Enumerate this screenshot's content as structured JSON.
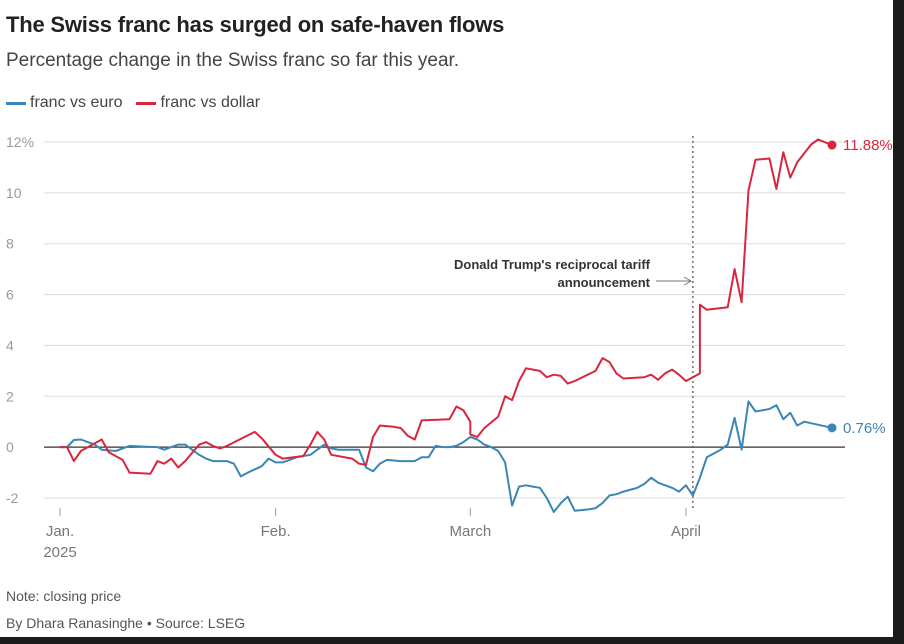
{
  "header": {
    "title": "The Swiss franc has surged on safe-haven flows",
    "subtitle": "Percentage change in the Swiss franc so far this year."
  },
  "footer": {
    "note": "Note: closing price",
    "source": "By Dhara Ranasinghe  • Source: LSEG"
  },
  "chart_data": {
    "type": "line",
    "title": "The Swiss franc has surged on safe-haven flows",
    "subtitle": "Percentage change in the Swiss franc so far this year.",
    "xlabel": "",
    "ylabel": "",
    "x_range": [
      "2025-01-01",
      "2025-04-22"
    ],
    "ylim": [
      -2.5,
      12.5
    ],
    "y_ticks": [
      {
        "value": 12,
        "label": "12%"
      },
      {
        "value": 10,
        "label": "10"
      },
      {
        "value": 8,
        "label": "8"
      },
      {
        "value": 6,
        "label": "6"
      },
      {
        "value": 4,
        "label": "4"
      },
      {
        "value": 2,
        "label": "2"
      },
      {
        "value": 0,
        "label": "0"
      },
      {
        "value": -2,
        "label": "-2"
      }
    ],
    "x_ticks": [
      {
        "date": "2025-01-01",
        "label": "Jan.",
        "sublabel": "2025"
      },
      {
        "date": "2025-02-01",
        "label": "Feb.",
        "sublabel": ""
      },
      {
        "date": "2025-03-01",
        "label": "March",
        "sublabel": ""
      },
      {
        "date": "2025-04-01",
        "label": "April",
        "sublabel": ""
      }
    ],
    "grid": true,
    "legend_position": "top-left",
    "annotation": {
      "date": "2025-04-02",
      "lines": [
        "Donald Trump's reciprocal tariff",
        "announcement"
      ]
    },
    "series": [
      {
        "name": "franc vs euro",
        "color": "#3a86b4",
        "end_label": "0.76%",
        "points": [
          [
            "2025-01-01",
            0.0
          ],
          [
            "2025-01-02",
            0.0
          ],
          [
            "2025-01-03",
            0.28
          ],
          [
            "2025-01-04",
            0.3
          ],
          [
            "2025-01-05",
            0.2
          ],
          [
            "2025-01-06",
            0.1
          ],
          [
            "2025-01-07",
            -0.1
          ],
          [
            "2025-01-09",
            -0.15
          ],
          [
            "2025-01-11",
            0.05
          ],
          [
            "2025-01-13",
            0.02
          ],
          [
            "2025-01-15",
            0.0
          ],
          [
            "2025-01-16",
            -0.1
          ],
          [
            "2025-01-17",
            0.0
          ],
          [
            "2025-01-18",
            0.1
          ],
          [
            "2025-01-19",
            0.1
          ],
          [
            "2025-01-20",
            -0.1
          ],
          [
            "2025-01-21",
            -0.3
          ],
          [
            "2025-01-22",
            -0.45
          ],
          [
            "2025-01-23",
            -0.55
          ],
          [
            "2025-01-25",
            -0.55
          ],
          [
            "2025-01-26",
            -0.65
          ],
          [
            "2025-01-27",
            -1.15
          ],
          [
            "2025-01-28",
            -1.0
          ],
          [
            "2025-01-30",
            -0.75
          ],
          [
            "2025-01-31",
            -0.45
          ],
          [
            "2025-02-01",
            -0.6
          ],
          [
            "2025-02-02",
            -0.6
          ],
          [
            "2025-02-03",
            -0.5
          ],
          [
            "2025-02-04",
            -0.4
          ],
          [
            "2025-02-06",
            -0.3
          ],
          [
            "2025-02-07",
            -0.1
          ],
          [
            "2025-02-08",
            0.1
          ],
          [
            "2025-02-09",
            -0.05
          ],
          [
            "2025-02-10",
            -0.1
          ],
          [
            "2025-02-11",
            -0.1
          ],
          [
            "2025-02-13",
            -0.1
          ],
          [
            "2025-02-14",
            -0.8
          ],
          [
            "2025-02-15",
            -0.95
          ],
          [
            "2025-02-16",
            -0.65
          ],
          [
            "2025-02-17",
            -0.5
          ],
          [
            "2025-02-19",
            -0.55
          ],
          [
            "2025-02-21",
            -0.55
          ],
          [
            "2025-02-22",
            -0.4
          ],
          [
            "2025-02-23",
            -0.4
          ],
          [
            "2025-02-24",
            0.05
          ],
          [
            "2025-02-25",
            0.0
          ],
          [
            "2025-02-26",
            0.0
          ],
          [
            "2025-02-27",
            0.05
          ],
          [
            "2025-02-28",
            0.2
          ],
          [
            "2025-03-01",
            0.4
          ],
          [
            "2025-03-02",
            0.3
          ],
          [
            "2025-03-03",
            0.1
          ],
          [
            "2025-03-04",
            0.0
          ],
          [
            "2025-03-05",
            -0.15
          ],
          [
            "2025-03-06",
            -0.6
          ],
          [
            "2025-03-07",
            -2.3
          ],
          [
            "2025-03-08",
            -1.55
          ],
          [
            "2025-03-09",
            -1.5
          ],
          [
            "2025-03-10",
            -1.55
          ],
          [
            "2025-03-11",
            -1.6
          ],
          [
            "2025-03-12",
            -2.0
          ],
          [
            "2025-03-13",
            -2.55
          ],
          [
            "2025-03-14",
            -2.2
          ],
          [
            "2025-03-15",
            -1.95
          ],
          [
            "2025-03-16",
            -2.5
          ],
          [
            "2025-03-18",
            -2.45
          ],
          [
            "2025-03-19",
            -2.4
          ],
          [
            "2025-03-20",
            -2.2
          ],
          [
            "2025-03-21",
            -1.9
          ],
          [
            "2025-03-22",
            -1.85
          ],
          [
            "2025-03-23",
            -1.75
          ],
          [
            "2025-03-25",
            -1.6
          ],
          [
            "2025-03-26",
            -1.45
          ],
          [
            "2025-03-27",
            -1.2
          ],
          [
            "2025-03-28",
            -1.4
          ],
          [
            "2025-03-30",
            -1.6
          ],
          [
            "2025-03-31",
            -1.75
          ],
          [
            "2025-04-01",
            -1.5
          ],
          [
            "2025-04-02",
            -1.9
          ],
          [
            "2025-04-03",
            -1.2
          ],
          [
            "2025-04-04",
            -0.4
          ],
          [
            "2025-04-05",
            -0.25
          ],
          [
            "2025-04-06",
            -0.1
          ],
          [
            "2025-04-07",
            0.1
          ],
          [
            "2025-04-08",
            1.15
          ],
          [
            "2025-04-09",
            -0.1
          ],
          [
            "2025-04-10",
            1.8
          ],
          [
            "2025-04-11",
            1.4
          ],
          [
            "2025-04-13",
            1.5
          ],
          [
            "2025-04-14",
            1.65
          ],
          [
            "2025-04-15",
            1.1
          ],
          [
            "2025-04-16",
            1.35
          ],
          [
            "2025-04-17",
            0.85
          ],
          [
            "2025-04-18",
            1.0
          ],
          [
            "2025-04-22",
            0.76
          ]
        ]
      },
      {
        "name": "franc vs dollar",
        "color": "#d8263e",
        "end_label": "11.88%",
        "points": [
          [
            "2025-01-01",
            0.0
          ],
          [
            "2025-01-02",
            0.0
          ],
          [
            "2025-01-03",
            -0.55
          ],
          [
            "2025-01-04",
            -0.15
          ],
          [
            "2025-01-05",
            0.0
          ],
          [
            "2025-01-07",
            0.3
          ],
          [
            "2025-01-08",
            -0.2
          ],
          [
            "2025-01-09",
            -0.35
          ],
          [
            "2025-01-10",
            -0.5
          ],
          [
            "2025-01-11",
            -1.0
          ],
          [
            "2025-01-14",
            -1.05
          ],
          [
            "2025-01-15",
            -0.55
          ],
          [
            "2025-01-16",
            -0.65
          ],
          [
            "2025-01-17",
            -0.45
          ],
          [
            "2025-01-18",
            -0.8
          ],
          [
            "2025-01-19",
            -0.55
          ],
          [
            "2025-01-21",
            0.1
          ],
          [
            "2025-01-22",
            0.2
          ],
          [
            "2025-01-23",
            0.05
          ],
          [
            "2025-01-24",
            -0.05
          ],
          [
            "2025-01-25",
            0.05
          ],
          [
            "2025-01-29",
            0.6
          ],
          [
            "2025-01-30",
            0.35
          ],
          [
            "2025-02-01",
            -0.3
          ],
          [
            "2025-02-02",
            -0.45
          ],
          [
            "2025-02-05",
            -0.35
          ],
          [
            "2025-02-06",
            0.1
          ],
          [
            "2025-02-07",
            0.6
          ],
          [
            "2025-02-08",
            0.3
          ],
          [
            "2025-02-09",
            -0.3
          ],
          [
            "2025-02-12",
            -0.45
          ],
          [
            "2025-02-13",
            -0.65
          ],
          [
            "2025-02-14",
            -0.7
          ],
          [
            "2025-02-15",
            0.4
          ],
          [
            "2025-02-16",
            0.85
          ],
          [
            "2025-02-18",
            0.8
          ],
          [
            "2025-02-19",
            0.75
          ],
          [
            "2025-02-20",
            0.45
          ],
          [
            "2025-02-21",
            0.3
          ],
          [
            "2025-02-22",
            1.05
          ],
          [
            "2025-02-26",
            1.1
          ],
          [
            "2025-02-27",
            1.6
          ],
          [
            "2025-02-28",
            1.45
          ],
          [
            "2025-02-29",
            1.0
          ],
          [
            "2025-03-01",
            0.5
          ],
          [
            "2025-03-02",
            0.4
          ],
          [
            "2025-03-03",
            0.75
          ],
          [
            "2025-03-05",
            1.2
          ],
          [
            "2025-03-06",
            2.0
          ],
          [
            "2025-03-07",
            1.85
          ],
          [
            "2025-03-08",
            2.6
          ],
          [
            "2025-03-09",
            3.1
          ],
          [
            "2025-03-11",
            3.0
          ],
          [
            "2025-03-12",
            2.75
          ],
          [
            "2025-03-13",
            2.85
          ],
          [
            "2025-03-14",
            2.8
          ],
          [
            "2025-03-15",
            2.5
          ],
          [
            "2025-03-16",
            2.6
          ],
          [
            "2025-03-19",
            3.0
          ],
          [
            "2025-03-20",
            3.5
          ],
          [
            "2025-03-21",
            3.35
          ],
          [
            "2025-03-22",
            2.9
          ],
          [
            "2025-03-23",
            2.7
          ],
          [
            "2025-03-26",
            2.75
          ],
          [
            "2025-03-27",
            2.85
          ],
          [
            "2025-03-28",
            2.65
          ],
          [
            "2025-03-29",
            2.9
          ],
          [
            "2025-03-30",
            3.05
          ],
          [
            "2025-03-31",
            2.85
          ],
          [
            "2025-04-01",
            2.6
          ],
          [
            "2025-04-02",
            2.75
          ],
          [
            "2025-04-03",
            2.9
          ],
          [
            "2025-04-03",
            5.6
          ],
          [
            "2025-04-04",
            5.4
          ],
          [
            "2025-04-07",
            5.5
          ],
          [
            "2025-04-08",
            7.0
          ],
          [
            "2025-04-09",
            5.7
          ],
          [
            "2025-04-10",
            10.1
          ],
          [
            "2025-04-11",
            11.3
          ],
          [
            "2025-04-13",
            11.35
          ],
          [
            "2025-04-14",
            10.15
          ],
          [
            "2025-04-15",
            11.6
          ],
          [
            "2025-04-16",
            10.6
          ],
          [
            "2025-04-17",
            11.2
          ],
          [
            "2025-04-19",
            11.9
          ],
          [
            "2025-04-20",
            12.1
          ],
          [
            "2025-04-22",
            11.88
          ]
        ]
      }
    ]
  }
}
